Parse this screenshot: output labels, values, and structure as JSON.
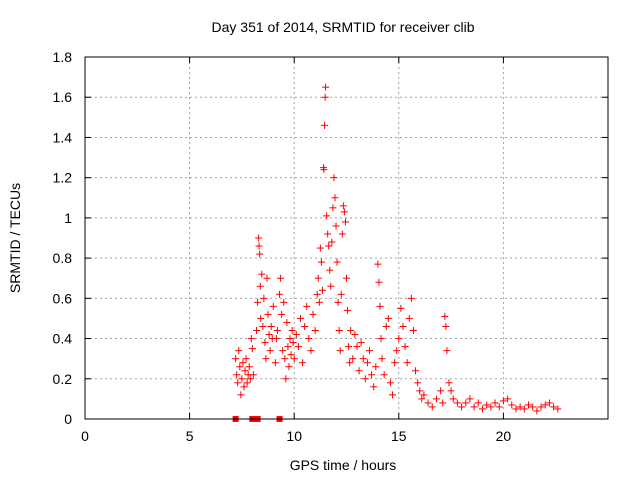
{
  "chart_data": {
    "type": "scatter",
    "title": "Day 351 of 2014, SRMTID for receiver clib",
    "xlabel": "GPS time / hours",
    "ylabel": "SRMTID / TECUs",
    "xlim": [
      0,
      25
    ],
    "ylim": [
      0,
      1.8
    ],
    "xticks": [
      0,
      5,
      10,
      15,
      20
    ],
    "xtick_labels": [
      "0",
      "5",
      "10",
      "15",
      "20"
    ],
    "yticks": [
      0,
      0.2,
      0.4,
      0.6,
      0.8,
      1,
      1.2,
      1.4,
      1.6,
      1.8
    ],
    "ytick_labels": [
      "0",
      "0.2",
      "0.4",
      "0.6",
      "0.8",
      "1",
      "1.2",
      "1.4",
      "1.6",
      "1.8"
    ],
    "grid": true,
    "marker_color": "#ff0000",
    "series": [
      {
        "name": "SRMTID",
        "marker": "plus",
        "points": [
          [
            7.2,
            0.3
          ],
          [
            7.25,
            0.22
          ],
          [
            7.3,
            0.18
          ],
          [
            7.35,
            0.34
          ],
          [
            7.4,
            0.26
          ],
          [
            7.45,
            0.12
          ],
          [
            7.5,
            0.2
          ],
          [
            7.55,
            0.28
          ],
          [
            7.6,
            0.16
          ],
          [
            7.65,
            0.24
          ],
          [
            7.7,
            0.3
          ],
          [
            7.75,
            0.18
          ],
          [
            7.8,
            0.22
          ],
          [
            7.85,
            0.26
          ],
          [
            7.9,
            0.2
          ],
          [
            7.95,
            0.4
          ],
          [
            8.0,
            0.35
          ],
          [
            8.05,
            0.22
          ],
          [
            8.2,
            0.44
          ],
          [
            8.25,
            0.58
          ],
          [
            8.3,
            0.9
          ],
          [
            8.32,
            0.86
          ],
          [
            8.35,
            0.82
          ],
          [
            8.38,
            0.66
          ],
          [
            8.4,
            0.5
          ],
          [
            8.45,
            0.72
          ],
          [
            8.5,
            0.46
          ],
          [
            8.55,
            0.6
          ],
          [
            8.6,
            0.38
          ],
          [
            8.65,
            0.3
          ],
          [
            8.7,
            0.7
          ],
          [
            8.75,
            0.52
          ],
          [
            8.8,
            0.42
          ],
          [
            8.85,
            0.34
          ],
          [
            8.9,
            0.46
          ],
          [
            8.95,
            0.4
          ],
          [
            9.0,
            0.56
          ],
          [
            9.1,
            0.28
          ],
          [
            9.15,
            0.4
          ],
          [
            9.2,
            0.44
          ],
          [
            9.3,
            0.62
          ],
          [
            9.35,
            0.7
          ],
          [
            9.4,
            0.52
          ],
          [
            9.45,
            0.34
          ],
          [
            9.5,
            0.58
          ],
          [
            9.55,
            0.3
          ],
          [
            9.6,
            0.2
          ],
          [
            9.65,
            0.48
          ],
          [
            9.7,
            0.36
          ],
          [
            9.75,
            0.26
          ],
          [
            9.8,
            0.4
          ],
          [
            9.85,
            0.32
          ],
          [
            9.9,
            0.44
          ],
          [
            9.95,
            0.38
          ],
          [
            10.0,
            0.3
          ],
          [
            10.1,
            0.42
          ],
          [
            10.2,
            0.36
          ],
          [
            10.3,
            0.5
          ],
          [
            10.4,
            0.28
          ],
          [
            10.5,
            0.46
          ],
          [
            10.6,
            0.56
          ],
          [
            10.7,
            0.4
          ],
          [
            10.8,
            0.34
          ],
          [
            10.9,
            0.52
          ],
          [
            11.0,
            0.44
          ],
          [
            11.1,
            0.62
          ],
          [
            11.15,
            0.7
          ],
          [
            11.2,
            0.58
          ],
          [
            11.25,
            0.85
          ],
          [
            11.3,
            0.78
          ],
          [
            11.35,
            0.64
          ],
          [
            11.4,
            1.25
          ],
          [
            11.42,
            1.24
          ],
          [
            11.45,
            1.46
          ],
          [
            11.48,
            1.6
          ],
          [
            11.5,
            1.65
          ],
          [
            11.55,
            1.01
          ],
          [
            11.6,
            0.92
          ],
          [
            11.65,
            0.86
          ],
          [
            11.7,
            0.74
          ],
          [
            11.75,
            0.66
          ],
          [
            11.8,
            0.88
          ],
          [
            11.85,
            1.05
          ],
          [
            11.9,
            1.2
          ],
          [
            11.95,
            1.1
          ],
          [
            12.0,
            0.96
          ],
          [
            12.05,
            0.78
          ],
          [
            12.1,
            0.58
          ],
          [
            12.15,
            0.44
          ],
          [
            12.2,
            0.34
          ],
          [
            12.25,
            0.62
          ],
          [
            12.3,
            0.92
          ],
          [
            12.35,
            1.06
          ],
          [
            12.4,
            1.03
          ],
          [
            12.45,
            0.98
          ],
          [
            12.5,
            0.7
          ],
          [
            12.55,
            0.54
          ],
          [
            12.6,
            0.36
          ],
          [
            12.65,
            0.28
          ],
          [
            12.7,
            0.44
          ],
          [
            12.8,
            0.3
          ],
          [
            12.9,
            0.42
          ],
          [
            13.0,
            0.36
          ],
          [
            13.1,
            0.24
          ],
          [
            13.2,
            0.38
          ],
          [
            13.3,
            0.3
          ],
          [
            13.4,
            0.2
          ],
          [
            13.5,
            0.28
          ],
          [
            13.6,
            0.34
          ],
          [
            13.7,
            0.22
          ],
          [
            13.8,
            0.16
          ],
          [
            13.9,
            0.26
          ],
          [
            14.0,
            0.77
          ],
          [
            14.05,
            0.68
          ],
          [
            14.1,
            0.56
          ],
          [
            14.15,
            0.4
          ],
          [
            14.2,
            0.3
          ],
          [
            14.3,
            0.22
          ],
          [
            14.4,
            0.46
          ],
          [
            14.5,
            0.5
          ],
          [
            14.6,
            0.18
          ],
          [
            14.7,
            0.12
          ],
          [
            14.8,
            0.28
          ],
          [
            14.9,
            0.34
          ],
          [
            15.0,
            0.4
          ],
          [
            15.1,
            0.55
          ],
          [
            15.2,
            0.46
          ],
          [
            15.3,
            0.36
          ],
          [
            15.4,
            0.28
          ],
          [
            15.5,
            0.5
          ],
          [
            15.6,
            0.6
          ],
          [
            15.7,
            0.44
          ],
          [
            15.8,
            0.24
          ],
          [
            15.9,
            0.18
          ],
          [
            16.0,
            0.14
          ],
          [
            16.1,
            0.1
          ],
          [
            16.2,
            0.12
          ],
          [
            16.4,
            0.08
          ],
          [
            16.6,
            0.06
          ],
          [
            16.8,
            0.1
          ],
          [
            17.0,
            0.14
          ],
          [
            17.1,
            0.08
          ],
          [
            17.2,
            0.51
          ],
          [
            17.25,
            0.46
          ],
          [
            17.3,
            0.34
          ],
          [
            17.4,
            0.18
          ],
          [
            17.5,
            0.14
          ],
          [
            17.6,
            0.1
          ],
          [
            17.8,
            0.08
          ],
          [
            18.0,
            0.06
          ],
          [
            18.2,
            0.08
          ],
          [
            18.4,
            0.1
          ],
          [
            18.6,
            0.06
          ],
          [
            18.8,
            0.08
          ],
          [
            19.0,
            0.05
          ],
          [
            19.2,
            0.07
          ],
          [
            19.4,
            0.06
          ],
          [
            19.6,
            0.08
          ],
          [
            19.8,
            0.06
          ],
          [
            20.0,
            0.09
          ],
          [
            20.2,
            0.1
          ],
          [
            20.4,
            0.07
          ],
          [
            20.6,
            0.05
          ],
          [
            20.8,
            0.06
          ],
          [
            21.0,
            0.05
          ],
          [
            21.2,
            0.07
          ],
          [
            21.4,
            0.06
          ],
          [
            21.6,
            0.04
          ],
          [
            21.8,
            0.06
          ],
          [
            22.0,
            0.07
          ],
          [
            22.2,
            0.08
          ],
          [
            22.4,
            0.06
          ],
          [
            22.6,
            0.05
          ]
        ]
      }
    ],
    "bottom_markers": {
      "name": "SRMTID (zero)",
      "marker": "square",
      "x": [
        7.2,
        8.0,
        8.15,
        8.25,
        9.3
      ],
      "y": 0
    }
  }
}
